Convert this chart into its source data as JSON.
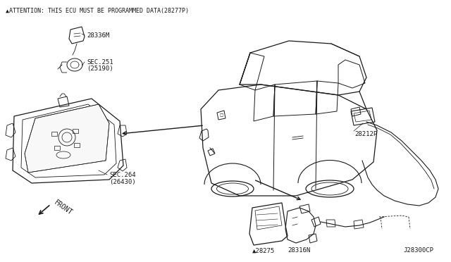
{
  "bg_color": "#ffffff",
  "line_color": "#1a1a1a",
  "attention_text": "▲ATTENTION: THIS ECU MUST BE PROGRAMMED DATA(28277P)",
  "label_28336M": "28336M",
  "label_sec251": "SEC.251\n(25190)",
  "label_sec264": "SEC.264\n(26430)",
  "label_front": "FRONT",
  "label_28212P": "28212P",
  "label_28275": "▲28275",
  "label_28316N": "28316N",
  "label_j28300cp": "J28300CP",
  "figsize": [
    6.4,
    3.72
  ],
  "dpi": 100
}
